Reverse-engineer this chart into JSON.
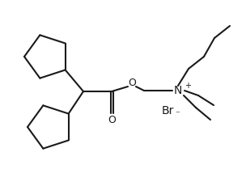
{
  "background": "#ffffff",
  "line_color": "#1a1a1a",
  "line_width": 1.5,
  "figsize": [
    3.04,
    2.25
  ],
  "dpi": 100,
  "N_label": "N",
  "N_plus": "+",
  "Br_label": "Br",
  "Br_minus": "⁻",
  "O_label": "O"
}
